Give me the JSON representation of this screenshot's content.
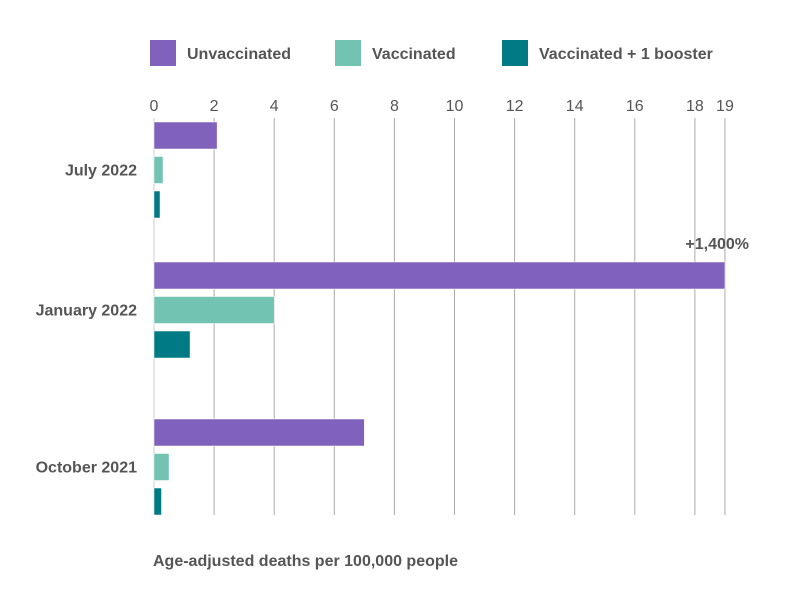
{
  "chart_data": {
    "type": "bar",
    "orientation": "horizontal",
    "categories": [
      "July 2022",
      "January 2022",
      "October 2021"
    ],
    "series": [
      {
        "name": "Unvaccinated",
        "color": "#8062BD",
        "values": [
          2.1,
          19,
          7
        ]
      },
      {
        "name": "Vaccinated",
        "color": "#72C3B1",
        "values": [
          0.3,
          4,
          0.5
        ]
      },
      {
        "name": "Vaccinated + 1 booster",
        "color": "#007B85",
        "values": [
          0.2,
          1.2,
          0.25
        ]
      }
    ],
    "xticks": [
      "0",
      "2",
      "4",
      "6",
      "8",
      "10",
      "12",
      "14",
      "16",
      "18",
      "19"
    ],
    "xtick_values": [
      0,
      2,
      4,
      6,
      8,
      10,
      12,
      14,
      16,
      18,
      19
    ],
    "xlim": [
      0,
      19
    ],
    "xlabel": "Age-adjusted deaths per 100,000 people",
    "annotation": "+1,400%",
    "legend_position": "top",
    "grid": true
  }
}
